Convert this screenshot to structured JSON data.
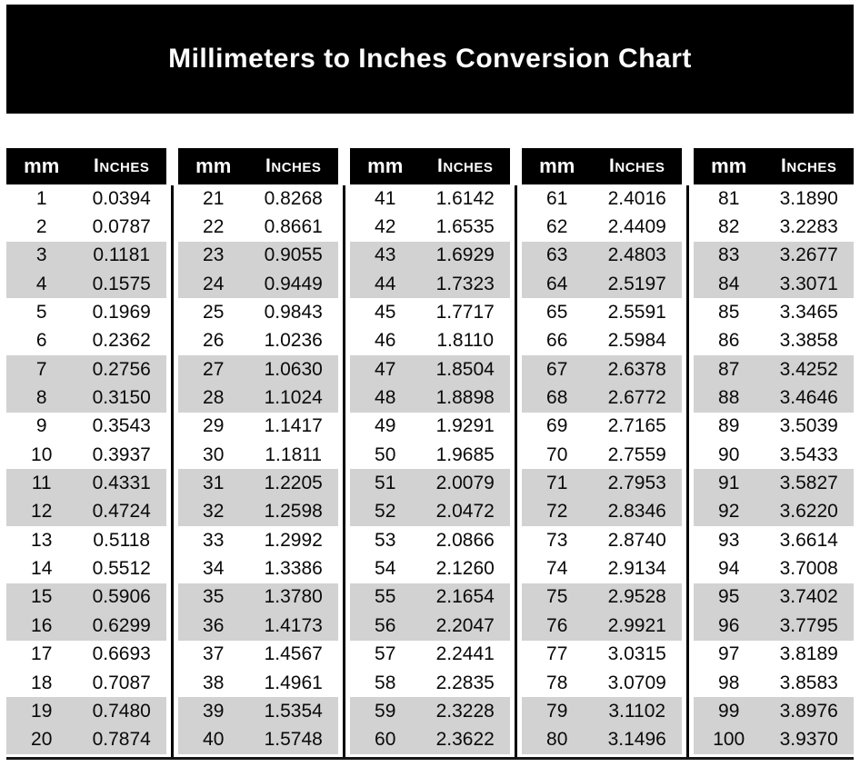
{
  "title": "Millimeters to Inches Conversion Chart",
  "column_headers": {
    "mm": "mm",
    "inches": "Inches"
  },
  "colors": {
    "banner_bg": "#000000",
    "banner_text": "#ffffff",
    "header_bg": "#000000",
    "header_text": "#ffffff",
    "row_shade": "#d2d2d2",
    "row_plain": "#ffffff",
    "divider": "#000000"
  },
  "shading_pattern": "pairs of two rows alternate white/gray starting with white",
  "tables": [
    {
      "rows": [
        {
          "mm": "1",
          "in": "0.0394"
        },
        {
          "mm": "2",
          "in": "0.0787"
        },
        {
          "mm": "3",
          "in": "0.1181"
        },
        {
          "mm": "4",
          "in": "0.1575"
        },
        {
          "mm": "5",
          "in": "0.1969"
        },
        {
          "mm": "6",
          "in": "0.2362"
        },
        {
          "mm": "7",
          "in": "0.2756"
        },
        {
          "mm": "8",
          "in": "0.3150"
        },
        {
          "mm": "9",
          "in": "0.3543"
        },
        {
          "mm": "10",
          "in": "0.3937"
        },
        {
          "mm": "11",
          "in": "0.4331"
        },
        {
          "mm": "12",
          "in": "0.4724"
        },
        {
          "mm": "13",
          "in": "0.5118"
        },
        {
          "mm": "14",
          "in": "0.5512"
        },
        {
          "mm": "15",
          "in": "0.5906"
        },
        {
          "mm": "16",
          "in": "0.6299"
        },
        {
          "mm": "17",
          "in": "0.6693"
        },
        {
          "mm": "18",
          "in": "0.7087"
        },
        {
          "mm": "19",
          "in": "0.7480"
        },
        {
          "mm": "20",
          "in": "0.7874"
        }
      ]
    },
    {
      "rows": [
        {
          "mm": "21",
          "in": "0.8268"
        },
        {
          "mm": "22",
          "in": "0.8661"
        },
        {
          "mm": "23",
          "in": "0.9055"
        },
        {
          "mm": "24",
          "in": "0.9449"
        },
        {
          "mm": "25",
          "in": "0.9843"
        },
        {
          "mm": "26",
          "in": "1.0236"
        },
        {
          "mm": "27",
          "in": "1.0630"
        },
        {
          "mm": "28",
          "in": "1.1024"
        },
        {
          "mm": "29",
          "in": "1.1417"
        },
        {
          "mm": "30",
          "in": "1.1811"
        },
        {
          "mm": "31",
          "in": "1.2205"
        },
        {
          "mm": "32",
          "in": "1.2598"
        },
        {
          "mm": "33",
          "in": "1.2992"
        },
        {
          "mm": "34",
          "in": "1.3386"
        },
        {
          "mm": "35",
          "in": "1.3780"
        },
        {
          "mm": "36",
          "in": "1.4173"
        },
        {
          "mm": "37",
          "in": "1.4567"
        },
        {
          "mm": "38",
          "in": "1.4961"
        },
        {
          "mm": "39",
          "in": "1.5354"
        },
        {
          "mm": "40",
          "in": "1.5748"
        }
      ]
    },
    {
      "rows": [
        {
          "mm": "41",
          "in": "1.6142"
        },
        {
          "mm": "42",
          "in": "1.6535"
        },
        {
          "mm": "43",
          "in": "1.6929"
        },
        {
          "mm": "44",
          "in": "1.7323"
        },
        {
          "mm": "45",
          "in": "1.7717"
        },
        {
          "mm": "46",
          "in": "1.8110"
        },
        {
          "mm": "47",
          "in": "1.8504"
        },
        {
          "mm": "48",
          "in": "1.8898"
        },
        {
          "mm": "49",
          "in": "1.9291"
        },
        {
          "mm": "50",
          "in": "1.9685"
        },
        {
          "mm": "51",
          "in": "2.0079"
        },
        {
          "mm": "52",
          "in": "2.0472"
        },
        {
          "mm": "53",
          "in": "2.0866"
        },
        {
          "mm": "54",
          "in": "2.1260"
        },
        {
          "mm": "55",
          "in": "2.1654"
        },
        {
          "mm": "56",
          "in": "2.2047"
        },
        {
          "mm": "57",
          "in": "2.2441"
        },
        {
          "mm": "58",
          "in": "2.2835"
        },
        {
          "mm": "59",
          "in": "2.3228"
        },
        {
          "mm": "60",
          "in": "2.3622"
        }
      ]
    },
    {
      "rows": [
        {
          "mm": "61",
          "in": "2.4016"
        },
        {
          "mm": "62",
          "in": "2.4409"
        },
        {
          "mm": "63",
          "in": "2.4803"
        },
        {
          "mm": "64",
          "in": "2.5197"
        },
        {
          "mm": "65",
          "in": "2.5591"
        },
        {
          "mm": "66",
          "in": "2.5984"
        },
        {
          "mm": "67",
          "in": "2.6378"
        },
        {
          "mm": "68",
          "in": "2.6772"
        },
        {
          "mm": "69",
          "in": "2.7165"
        },
        {
          "mm": "70",
          "in": "2.7559"
        },
        {
          "mm": "71",
          "in": "2.7953"
        },
        {
          "mm": "72",
          "in": "2.8346"
        },
        {
          "mm": "73",
          "in": "2.8740"
        },
        {
          "mm": "74",
          "in": "2.9134"
        },
        {
          "mm": "75",
          "in": "2.9528"
        },
        {
          "mm": "76",
          "in": "2.9921"
        },
        {
          "mm": "77",
          "in": "3.0315"
        },
        {
          "mm": "78",
          "in": "3.0709"
        },
        {
          "mm": "79",
          "in": "3.1102"
        },
        {
          "mm": "80",
          "in": "3.1496"
        }
      ]
    },
    {
      "rows": [
        {
          "mm": "81",
          "in": "3.1890"
        },
        {
          "mm": "82",
          "in": "3.2283"
        },
        {
          "mm": "83",
          "in": "3.2677"
        },
        {
          "mm": "84",
          "in": "3.3071"
        },
        {
          "mm": "85",
          "in": "3.3465"
        },
        {
          "mm": "86",
          "in": "3.3858"
        },
        {
          "mm": "87",
          "in": "3.4252"
        },
        {
          "mm": "88",
          "in": "3.4646"
        },
        {
          "mm": "89",
          "in": "3.5039"
        },
        {
          "mm": "90",
          "in": "3.5433"
        },
        {
          "mm": "91",
          "in": "3.5827"
        },
        {
          "mm": "92",
          "in": "3.6220"
        },
        {
          "mm": "93",
          "in": "3.6614"
        },
        {
          "mm": "94",
          "in": "3.7008"
        },
        {
          "mm": "95",
          "in": "3.7402"
        },
        {
          "mm": "96",
          "in": "3.7795"
        },
        {
          "mm": "97",
          "in": "3.8189"
        },
        {
          "mm": "98",
          "in": "3.8583"
        },
        {
          "mm": "99",
          "in": "3.8976"
        },
        {
          "mm": "100",
          "in": "3.9370"
        }
      ]
    }
  ]
}
